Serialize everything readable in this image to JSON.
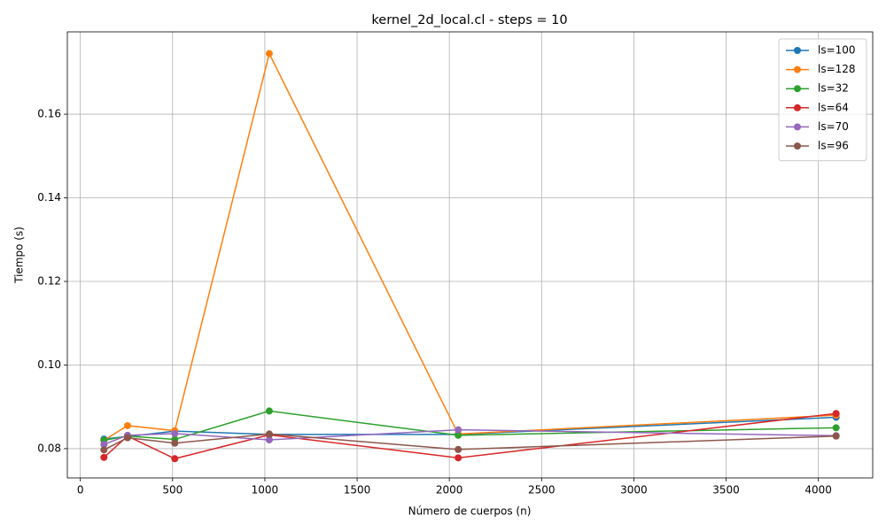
{
  "chart_data": {
    "type": "line",
    "title": "kernel_2d_local.cl - steps = 10",
    "x_label": "Número de cuerpos (n)",
    "y_label": "Tiempo (s)",
    "x": [
      128,
      256,
      512,
      1024,
      2048,
      4096
    ],
    "series": [
      {
        "name": "ls=100",
        "color": "#1f77b4",
        "values": [
          0.0823,
          0.0829,
          0.0842,
          0.0834,
          0.0834,
          0.0875
        ]
      },
      {
        "name": "ls=128",
        "color": "#ff7f0e",
        "values": [
          0.082,
          0.0855,
          0.0843,
          0.1745,
          0.0835,
          0.088
        ]
      },
      {
        "name": "ls=32",
        "color": "#2ca02c",
        "values": [
          0.082,
          0.083,
          0.0822,
          0.089,
          0.0832,
          0.085
        ]
      },
      {
        "name": "ls=64",
        "color": "#d62728",
        "values": [
          0.0779,
          0.083,
          0.0776,
          0.0833,
          0.0778,
          0.0884
        ]
      },
      {
        "name": "ls=70",
        "color": "#9467bd",
        "values": [
          0.081,
          0.0832,
          0.0836,
          0.0821,
          0.0845,
          0.0831
        ]
      },
      {
        "name": "ls=96",
        "color": "#8c564b",
        "values": [
          0.0797,
          0.0826,
          0.0813,
          0.0835,
          0.0798,
          0.083
        ]
      }
    ],
    "xlim": [
      -70.4,
      4294.4
    ],
    "ylim": [
      0.073,
      0.1797
    ],
    "xticks": [
      0,
      500,
      1000,
      1500,
      2000,
      2500,
      3000,
      3500,
      4000
    ],
    "yticks": [
      0.08,
      {
        "value": 0.1,
        "label": "0.10"
      },
      0.12,
      0.14,
      0.16
    ],
    "grid": true,
    "legend": "upper right",
    "marker": "circle"
  }
}
